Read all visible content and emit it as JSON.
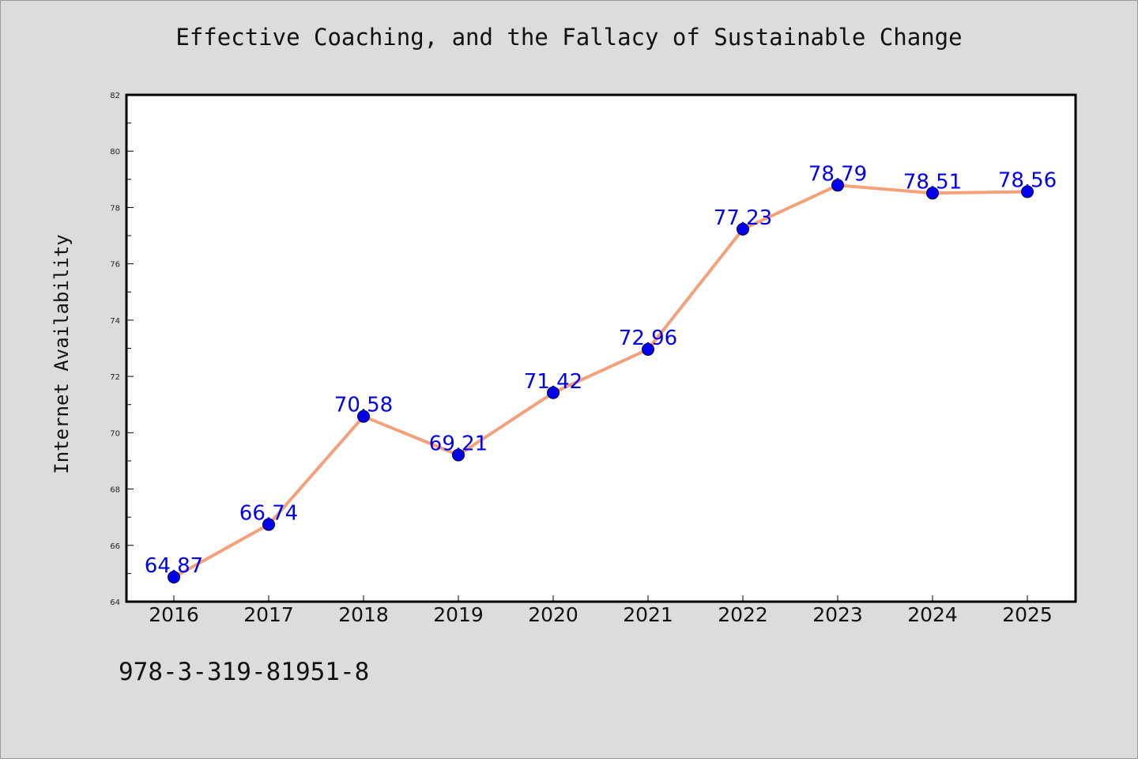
{
  "chart_data": {
    "type": "line",
    "title": "Effective Coaching, and the Fallacy of Sustainable Change",
    "xlabel": "",
    "ylabel": "Internet Availability",
    "categories": [
      "2016",
      "2017",
      "2018",
      "2019",
      "2020",
      "2021",
      "2022",
      "2023",
      "2024",
      "2025"
    ],
    "series": [
      {
        "values": [
          64.87,
          66.74,
          70.58,
          69.21,
          71.42,
          72.96,
          77.23,
          78.79,
          78.51,
          78.56
        ],
        "data_labels": [
          "64.87",
          "66.74",
          "70.58",
          "69.21",
          "71.42",
          "72.96",
          "77.23",
          "78.79",
          "78.51",
          "78.56"
        ],
        "line_color": "#f4a07a",
        "marker_color": "#0000ee",
        "label_color": "#0000ee"
      }
    ],
    "ylim": [
      64,
      82
    ],
    "yticks": [
      "64",
      "66",
      "68",
      "70",
      "72",
      "74",
      "76",
      "78",
      "80",
      "82"
    ],
    "grid": false,
    "legend": "none"
  },
  "footer": {
    "code": "978-3-319-81951-8"
  },
  "colors": {
    "background": "#dcdcdc",
    "plot_area": "#ffffff",
    "axis": "#000000"
  }
}
